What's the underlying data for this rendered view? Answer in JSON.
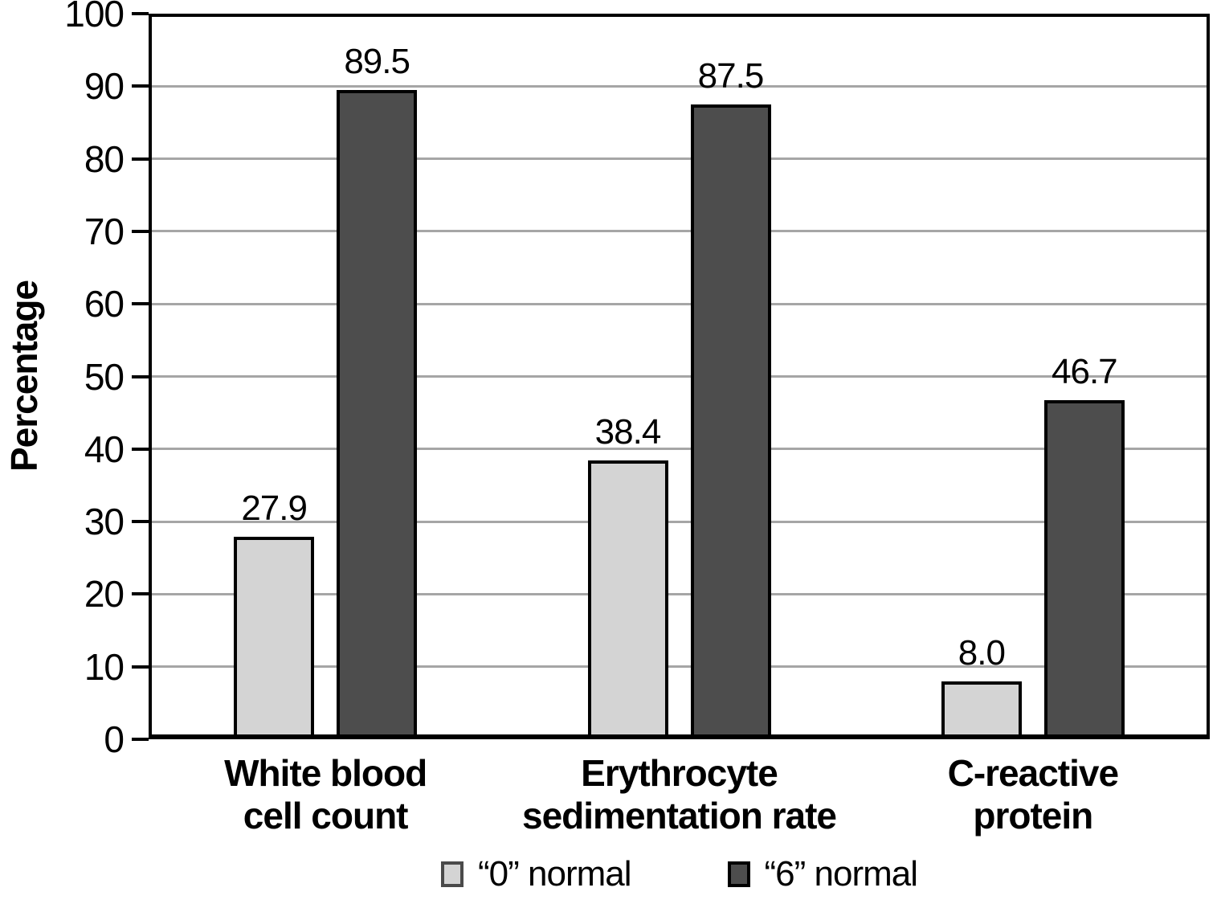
{
  "chart_data": {
    "type": "bar",
    "title": "",
    "xlabel": "",
    "ylabel": "Percentage",
    "ylim": [
      0,
      100
    ],
    "ytick_step": 10,
    "grid": true,
    "legend_position": "bottom",
    "categories": [
      "White blood\ncell count",
      "Erythrocyte\nsedimentation rate",
      "C-reactive\nprotein"
    ],
    "series": [
      {
        "name": "“0” normal",
        "values": [
          27.9,
          38.4,
          8.0
        ],
        "value_labels": [
          "27.9",
          "38.4",
          "8.0"
        ],
        "fill": "#d4d4d4",
        "border": "#000000",
        "legend_border": "#4a4a4a"
      },
      {
        "name": "“6” normal",
        "values": [
          89.5,
          87.5,
          46.7
        ],
        "value_labels": [
          "89.5",
          "87.5",
          "46.7"
        ],
        "fill": "#4d4d4d",
        "border": "#000000",
        "legend_border": "#000000"
      }
    ],
    "colors": {
      "gridline": "#a6a6a6",
      "axis": "#000000",
      "text": "#000000",
      "background": "#ffffff"
    }
  }
}
